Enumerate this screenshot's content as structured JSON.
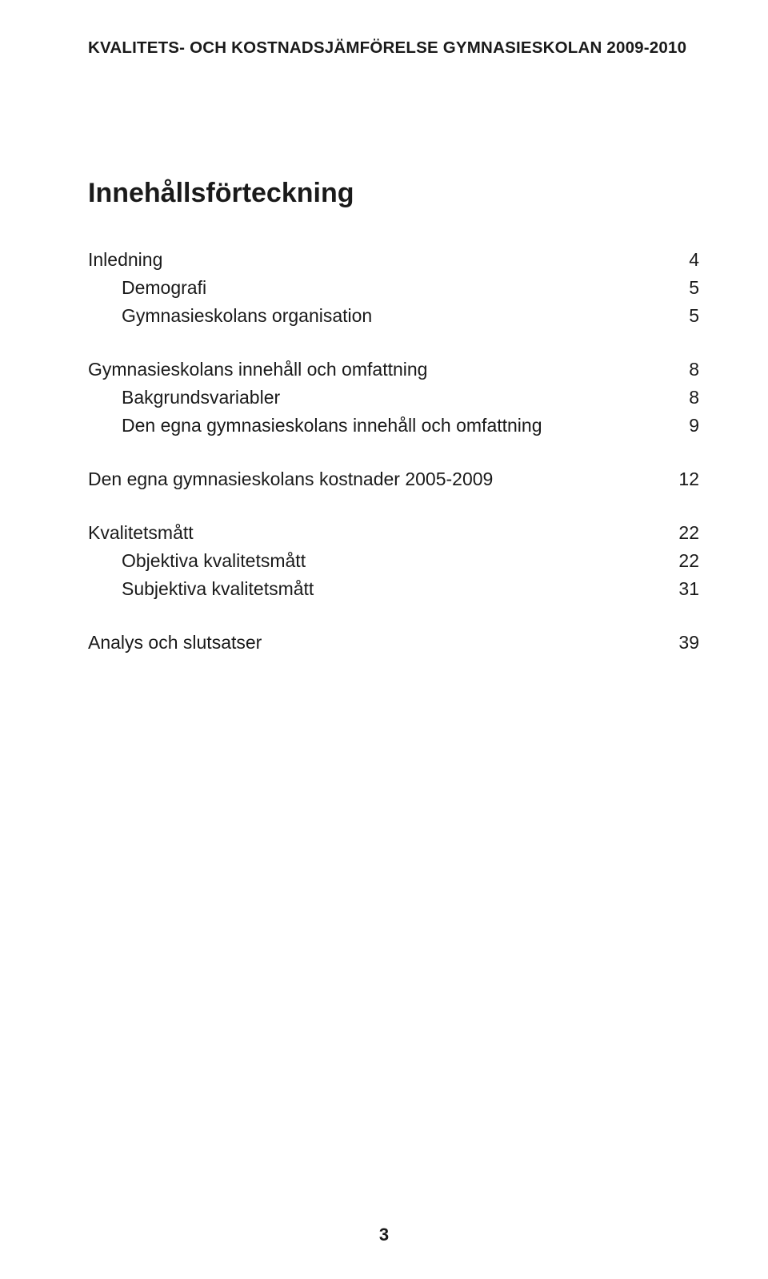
{
  "running_header": "KVALITETS- OCH KOSTNADSJÄMFÖRELSE GYMNASIESKOLAN 2009-2010",
  "toc_title": "Innehållsförteckning",
  "toc": [
    {
      "main": {
        "label": "Inledning",
        "page": "4"
      },
      "subs": [
        {
          "label": "Demografi",
          "page": "5"
        },
        {
          "label": "Gymnasieskolans organisation",
          "page": "5"
        }
      ]
    },
    {
      "main": {
        "label": "Gymnasieskolans innehåll och omfattning",
        "page": "8"
      },
      "subs": [
        {
          "label": "Bakgrundsvariabler",
          "page": "8"
        },
        {
          "label": "Den egna gymnasieskolans innehåll och omfattning",
          "page": "9"
        }
      ]
    },
    {
      "main": {
        "label": "Den egna gymnasieskolans kostnader 2005-2009",
        "page": "12"
      },
      "subs": []
    },
    {
      "main": {
        "label": "Kvalitetsmått",
        "page": "22"
      },
      "subs": [
        {
          "label": "Objektiva kvalitetsmått",
          "page": "22"
        },
        {
          "label": "Subjektiva kvalitetsmått",
          "page": "31"
        }
      ]
    },
    {
      "main": {
        "label": "Analys och slutsatser",
        "page": "39"
      },
      "subs": []
    }
  ],
  "page_number": "3"
}
